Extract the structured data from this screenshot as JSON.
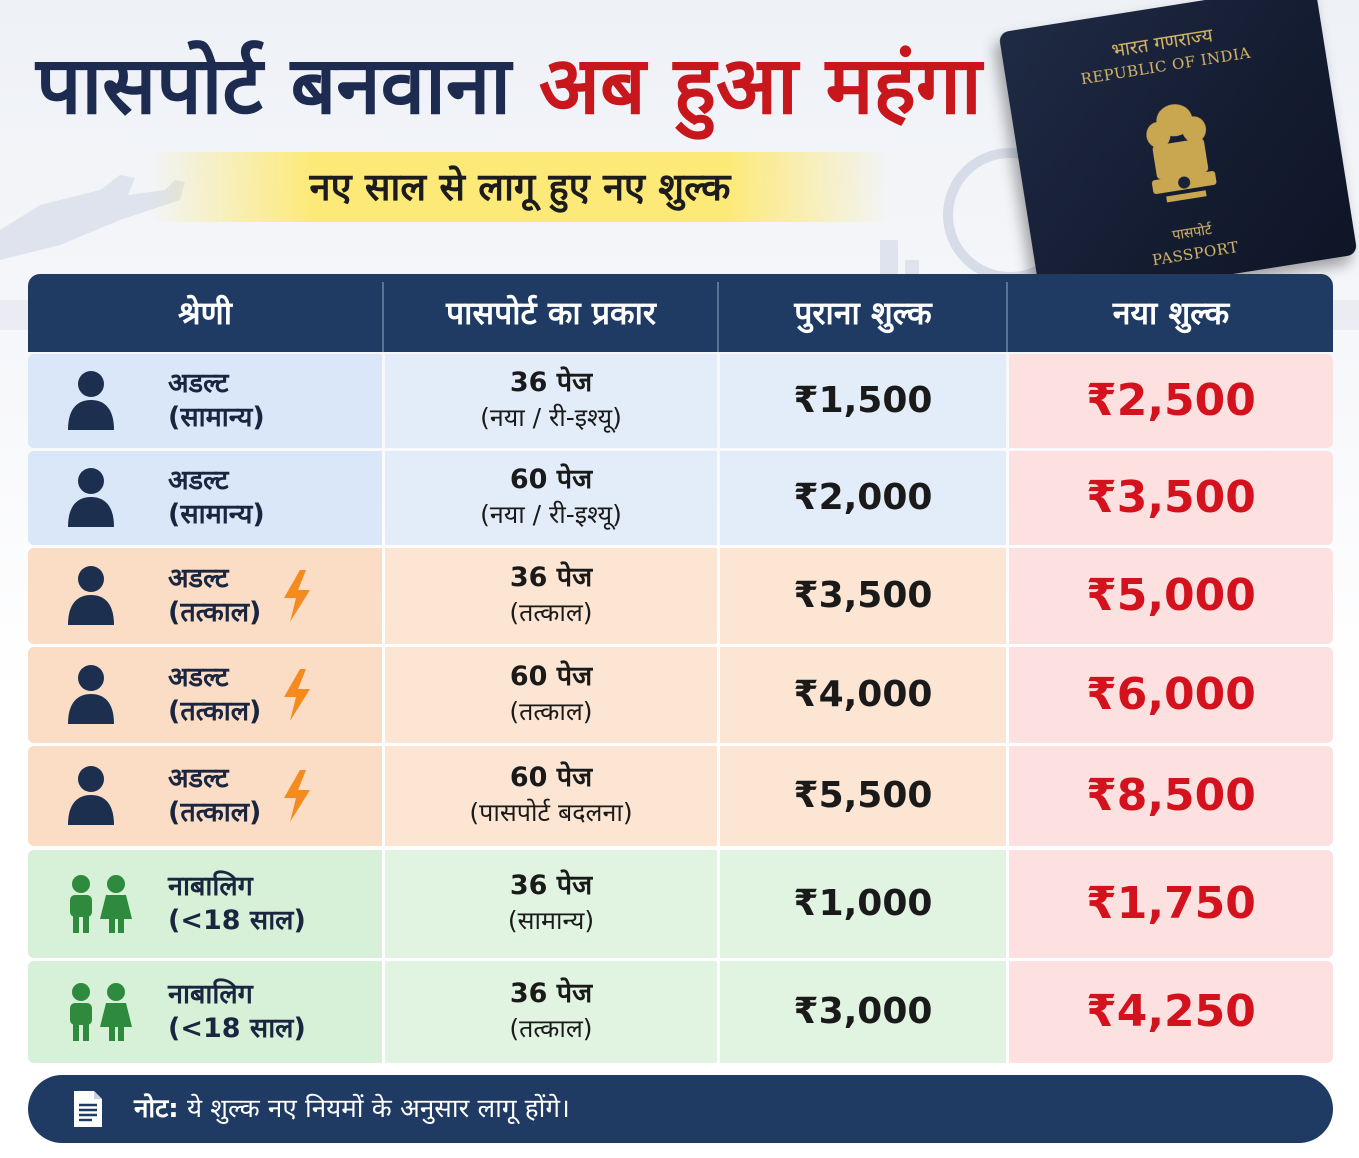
{
  "title": {
    "part1": "पासपोर्ट बनवाना",
    "part2": "अब हुआ महंगा"
  },
  "subtitle": "नए साल से लागू हुए नए शुल्क",
  "passport_cover": {
    "hindi_top": "भारत गणराज्य",
    "english_top": "REPUBLIC OF INDIA",
    "hindi_bottom": "पासपोर्ट",
    "english_bottom": "PASSPORT"
  },
  "table": {
    "headers": [
      "श्रेणी",
      "पासपोर्ट का प्रकार",
      "पुराना शुल्क",
      "नया शुल्क"
    ],
    "rows": [
      {
        "theme": "blue",
        "icon": "person-icon",
        "cat1": "अडल्ट",
        "cat2": "(सामान्य)",
        "tatkal": false,
        "type1": "36 पेज",
        "type2": "(नया / री-इश्यू)",
        "old": "₹1,500",
        "new": "₹2,500"
      },
      {
        "theme": "blue",
        "icon": "person-icon",
        "cat1": "अडल्ट",
        "cat2": "(सामान्य)",
        "tatkal": false,
        "type1": "60 पेज",
        "type2": "(नया / री-इश्यू)",
        "old": "₹2,000",
        "new": "₹3,500"
      },
      {
        "theme": "orange",
        "icon": "person-icon",
        "cat1": "अडल्ट",
        "cat2": "(तत्काल)",
        "tatkal": true,
        "type1": "36 पेज",
        "type2": "(तत्काल)",
        "old": "₹3,500",
        "new": "₹5,000"
      },
      {
        "theme": "orange",
        "icon": "person-icon",
        "cat1": "अडल्ट",
        "cat2": "(तत्काल)",
        "tatkal": true,
        "type1": "60 पेज",
        "type2": "(तत्काल)",
        "old": "₹4,000",
        "new": "₹6,000"
      },
      {
        "theme": "orange",
        "icon": "person-icon",
        "cat1": "अडल्ट",
        "cat2": "(तत्काल)",
        "tatkal": true,
        "type1": "60 पेज",
        "type2": "(पासपोर्ट बदलना)",
        "old": "₹5,500",
        "new": "₹8,500"
      },
      {
        "theme": "green",
        "icon": "kids-icon",
        "cat1": "नाबालिग",
        "cat2": "(<18 साल)",
        "tatkal": false,
        "type1": "36 पेज",
        "type2": "(सामान्य)",
        "old": "₹1,000",
        "new": "₹1,750"
      },
      {
        "theme": "green",
        "icon": "kids-icon",
        "cat1": "नाबालिग",
        "cat2": "(<18 साल)",
        "tatkal": false,
        "type1": "36 पेज",
        "type2": "(तत्काल)",
        "old": "₹3,000",
        "new": "₹4,250"
      }
    ]
  },
  "note": {
    "label": "नोट:",
    "text": "ये शुल्क नए नियमों के अनुसार लागू होंगे।"
  },
  "colors": {
    "navy": "#1f3a63",
    "title_dark": "#1c2b4f",
    "title_red": "#c8161d",
    "new_fee_red": "#d3121d",
    "tatkal_orange": "#f58a1f",
    "kids_green": "#2e8b3e"
  }
}
